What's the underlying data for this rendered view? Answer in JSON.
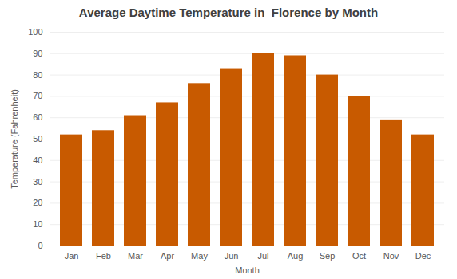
{
  "chart_data": {
    "type": "bar",
    "title": "Average Daytime Temperature in  Florence by Month",
    "xlabel": "Month",
    "ylabel": "Temperature (Fahrenheit)",
    "categories": [
      "Jan",
      "Feb",
      "Mar",
      "Apr",
      "May",
      "Jun",
      "Jul",
      "Aug",
      "Sep",
      "Oct",
      "Nov",
      "Dec"
    ],
    "values": [
      52,
      54,
      61,
      67,
      76,
      83,
      90,
      89,
      80,
      70,
      59,
      52
    ],
    "color": "#C85A00",
    "ylim": [
      0,
      100
    ],
    "yticks": [
      0,
      10,
      20,
      30,
      40,
      50,
      60,
      70,
      80,
      90,
      100
    ],
    "grid": true
  }
}
